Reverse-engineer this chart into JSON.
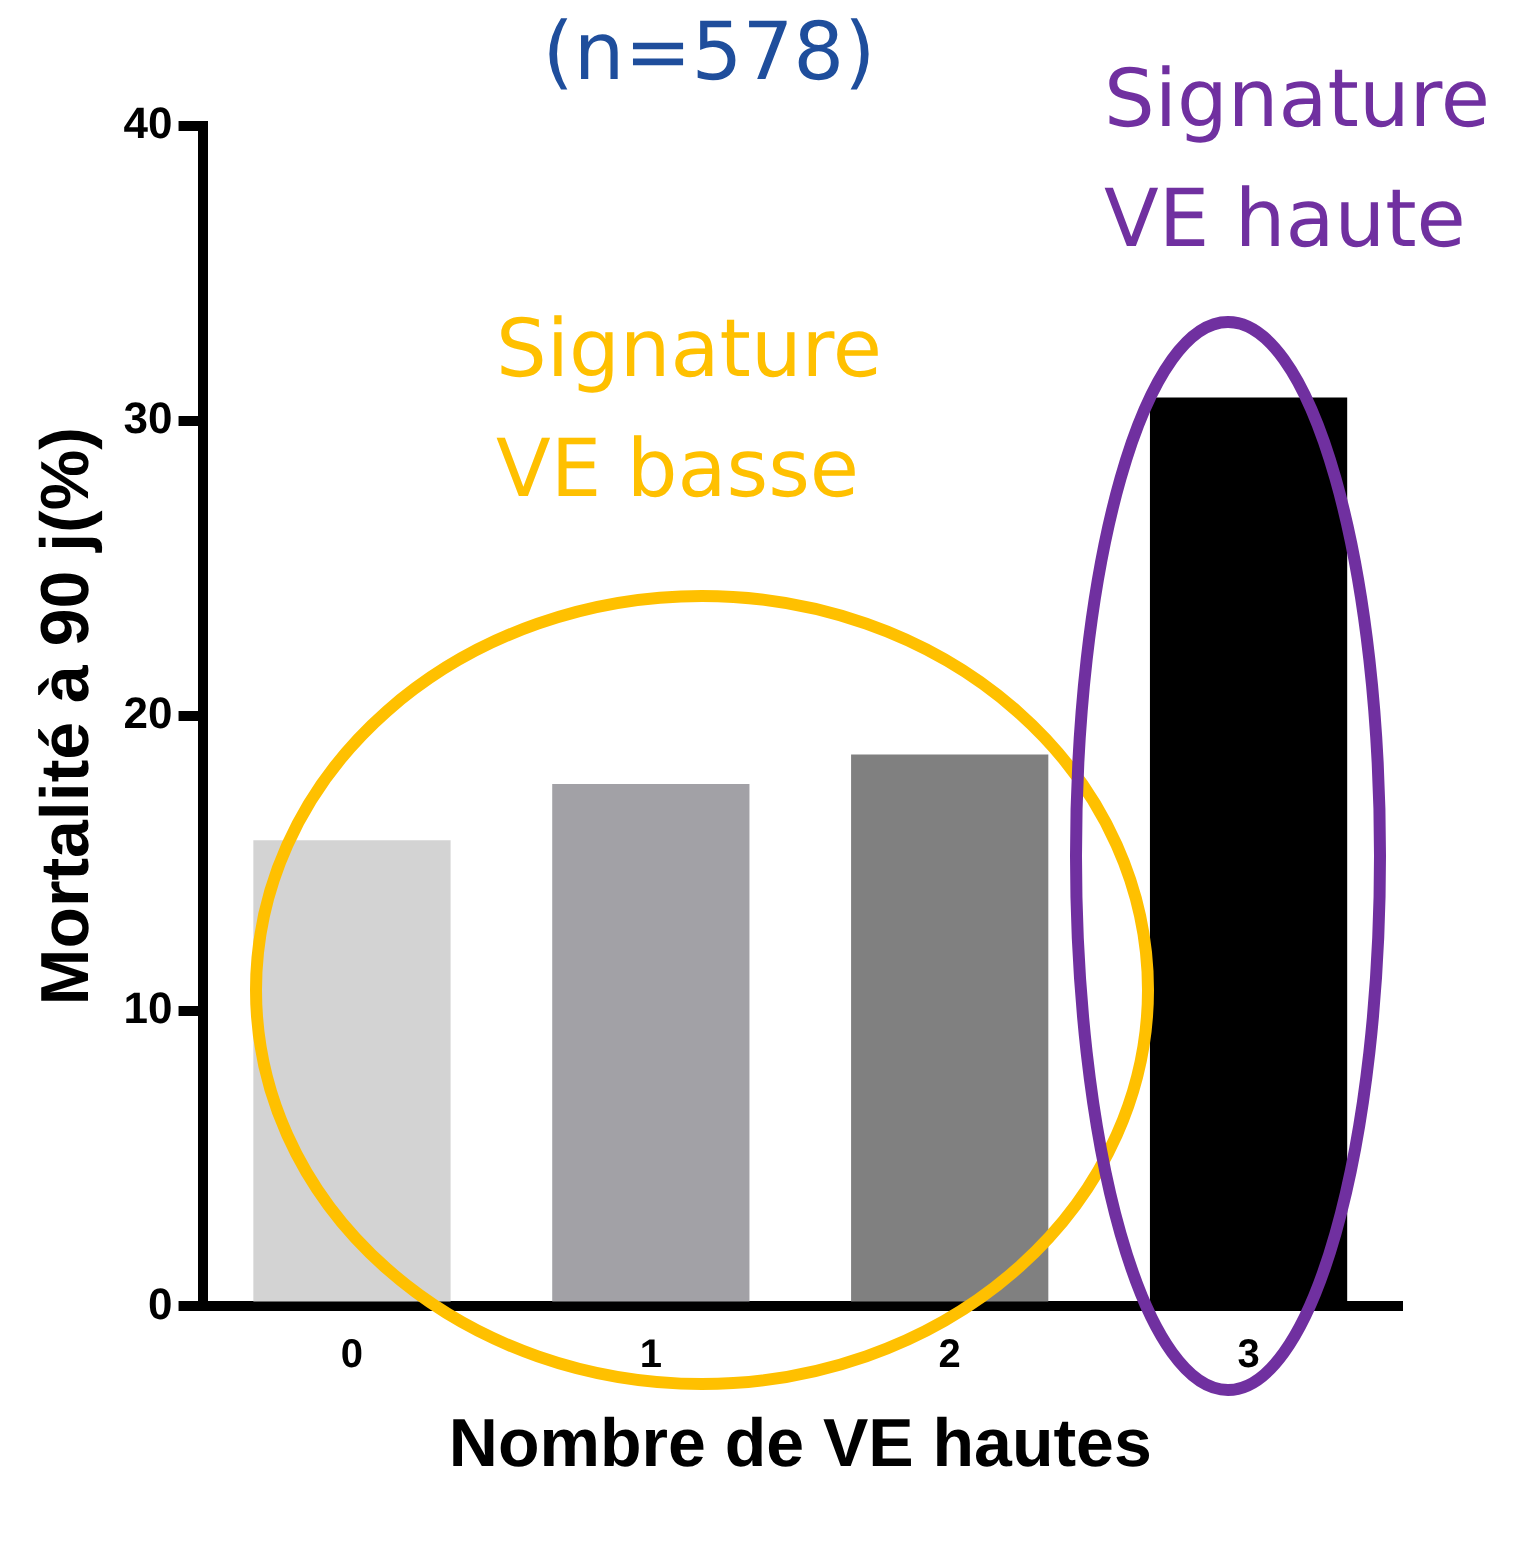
{
  "chart_data": {
    "type": "bar",
    "title": "(n=578)",
    "xlabel": "Nombre de VE hautes",
    "ylabel": "Mortalité à 90 j(%)",
    "categories": [
      "0",
      "1",
      "2",
      "3"
    ],
    "values": [
      15.8,
      17.7,
      18.7,
      30.8
    ],
    "colors": [
      "#d3d3d3",
      "#a2a1a6",
      "#808080",
      "#000000"
    ],
    "ylim": [
      0,
      40
    ],
    "yticks": [
      0,
      10,
      20,
      30,
      40
    ],
    "grid": false,
    "legend": false,
    "annotations": [
      "Signature\nVE basse",
      "Signature\nVE haute"
    ]
  }
}
